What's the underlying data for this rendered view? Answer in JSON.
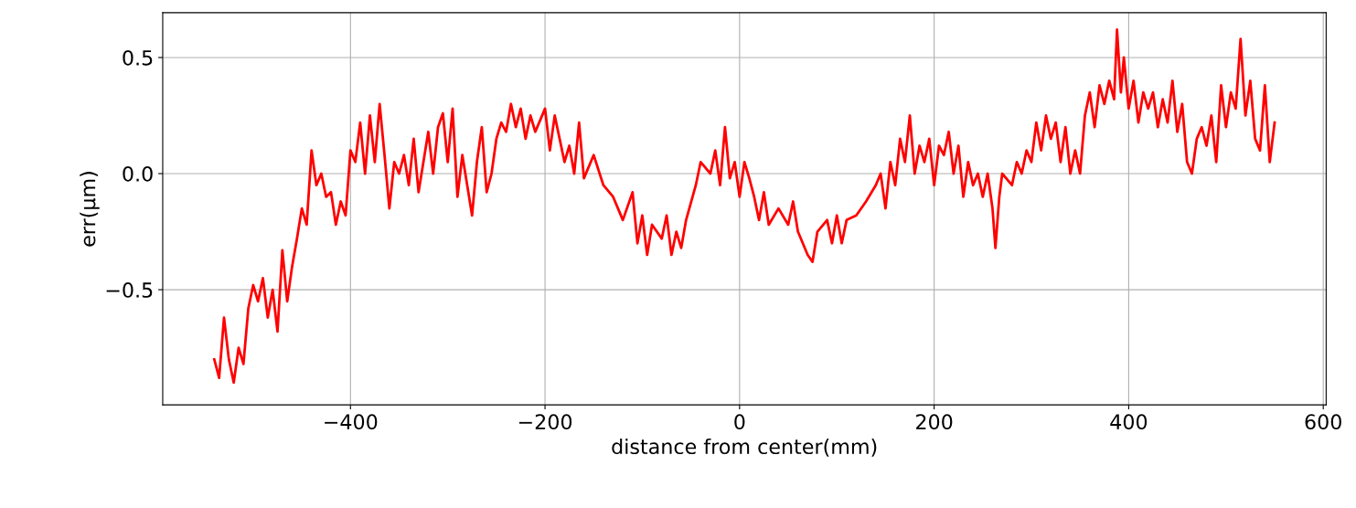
{
  "chart_data": {
    "type": "line",
    "xlabel": "distance from center(mm)",
    "ylabel": "err(µm)",
    "xlim": [
      -593,
      603
    ],
    "ylim": [
      -0.996,
      0.693
    ],
    "xticks": [
      {
        "value": -400,
        "label": "−400"
      },
      {
        "value": -200,
        "label": "−200"
      },
      0,
      200,
      400,
      600
    ],
    "yticks": [
      {
        "value": -0.5,
        "label": "−0.5"
      },
      {
        "value": 0.0,
        "label": "0.0"
      },
      0.5
    ],
    "grid": true,
    "marker": "none",
    "line_style": "solid",
    "series": [
      {
        "color": "#ff0000",
        "x": [
          -540,
          -535,
          -530,
          -525,
          -520,
          -515,
          -510,
          -505,
          -500,
          -495,
          -490,
          -485,
          -480,
          -475,
          -470,
          -465,
          -460,
          -455,
          -450,
          -445,
          -440,
          -435,
          -430,
          -425,
          -420,
          -415,
          -410,
          -405,
          -400,
          -395,
          -390,
          -385,
          -380,
          -375,
          -370,
          -365,
          -360,
          -355,
          -350,
          -345,
          -340,
          -335,
          -330,
          -325,
          -320,
          -315,
          -310,
          -305,
          -300,
          -295,
          -290,
          -285,
          -280,
          -275,
          -270,
          -265,
          -260,
          -255,
          -250,
          -245,
          -240,
          -235,
          -230,
          -225,
          -220,
          -215,
          -210,
          -200,
          -195,
          -190,
          -185,
          -180,
          -175,
          -170,
          -165,
          -160,
          -150,
          -140,
          -130,
          -125,
          -120,
          -110,
          -105,
          -100,
          -95,
          -90,
          -80,
          -75,
          -70,
          -65,
          -60,
          -55,
          -45,
          -40,
          -30,
          -25,
          -20,
          -15,
          -10,
          -5,
          0,
          5,
          10,
          15,
          20,
          25,
          30,
          40,
          50,
          55,
          60,
          70,
          75,
          80,
          90,
          95,
          100,
          105,
          110,
          120,
          130,
          140,
          145,
          150,
          155,
          160,
          165,
          170,
          175,
          180,
          185,
          190,
          195,
          200,
          205,
          210,
          215,
          220,
          225,
          230,
          235,
          240,
          245,
          250,
          255,
          260,
          263,
          267,
          270,
          280,
          285,
          290,
          295,
          300,
          305,
          310,
          315,
          320,
          325,
          330,
          335,
          340,
          345,
          350,
          355,
          360,
          365,
          370,
          375,
          380,
          385,
          388,
          392,
          395,
          400,
          405,
          410,
          415,
          420,
          425,
          430,
          435,
          440,
          445,
          450,
          455,
          460,
          465,
          470,
          475,
          480,
          485,
          490,
          495,
          500,
          505,
          510,
          515,
          520,
          525,
          530,
          535,
          540,
          545,
          550
        ],
        "values": [
          -0.8,
          -0.88,
          -0.62,
          -0.8,
          -0.9,
          -0.75,
          -0.82,
          -0.58,
          -0.48,
          -0.55,
          -0.45,
          -0.62,
          -0.5,
          -0.68,
          -0.33,
          -0.55,
          -0.4,
          -0.28,
          -0.15,
          -0.22,
          0.1,
          -0.05,
          0.0,
          -0.1,
          -0.08,
          -0.22,
          -0.12,
          -0.18,
          0.1,
          0.05,
          0.22,
          0.0,
          0.25,
          0.05,
          0.3,
          0.08,
          -0.15,
          0.05,
          0.0,
          0.08,
          -0.05,
          0.15,
          -0.08,
          0.05,
          0.18,
          0.0,
          0.2,
          0.26,
          0.05,
          0.28,
          -0.1,
          0.08,
          -0.05,
          -0.18,
          0.05,
          0.2,
          -0.08,
          0.0,
          0.15,
          0.22,
          0.18,
          0.3,
          0.2,
          0.28,
          0.15,
          0.25,
          0.18,
          0.28,
          0.1,
          0.25,
          0.15,
          0.05,
          0.12,
          0.0,
          0.22,
          -0.02,
          0.08,
          -0.05,
          -0.1,
          -0.15,
          -0.2,
          -0.08,
          -0.3,
          -0.18,
          -0.35,
          -0.22,
          -0.28,
          -0.18,
          -0.35,
          -0.25,
          -0.32,
          -0.2,
          -0.05,
          0.05,
          0.0,
          0.1,
          -0.05,
          0.2,
          -0.02,
          0.05,
          -0.1,
          0.05,
          -0.02,
          -0.1,
          -0.2,
          -0.08,
          -0.22,
          -0.15,
          -0.22,
          -0.12,
          -0.25,
          -0.35,
          -0.38,
          -0.25,
          -0.2,
          -0.3,
          -0.18,
          -0.3,
          -0.2,
          -0.18,
          -0.12,
          -0.05,
          0.0,
          -0.15,
          0.05,
          -0.05,
          0.15,
          0.05,
          0.25,
          0.0,
          0.12,
          0.05,
          0.15,
          -0.05,
          0.12,
          0.08,
          0.18,
          0.0,
          0.12,
          -0.1,
          0.05,
          -0.05,
          0.0,
          -0.1,
          0.0,
          -0.15,
          -0.32,
          -0.1,
          0.0,
          -0.05,
          0.05,
          0.0,
          0.1,
          0.05,
          0.22,
          0.1,
          0.25,
          0.15,
          0.22,
          0.05,
          0.2,
          0.0,
          0.1,
          0.0,
          0.25,
          0.35,
          0.2,
          0.38,
          0.3,
          0.4,
          0.32,
          0.62,
          0.35,
          0.5,
          0.28,
          0.4,
          0.22,
          0.35,
          0.28,
          0.35,
          0.2,
          0.32,
          0.22,
          0.4,
          0.18,
          0.3,
          0.05,
          0.0,
          0.15,
          0.2,
          0.12,
          0.25,
          0.05,
          0.38,
          0.2,
          0.35,
          0.28,
          0.58,
          0.25,
          0.4,
          0.15,
          0.1,
          0.38,
          0.05,
          0.22
        ]
      }
    ]
  }
}
